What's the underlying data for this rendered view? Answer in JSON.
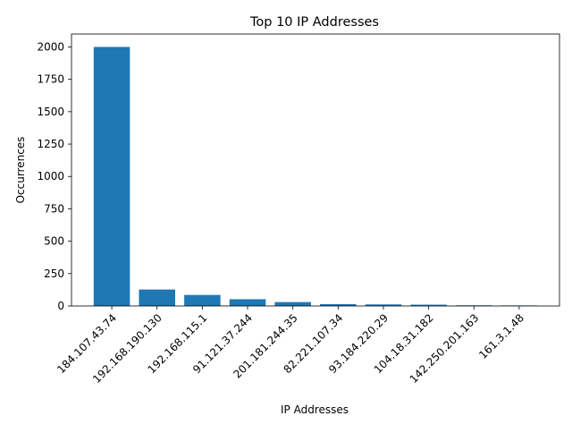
{
  "chart_data": {
    "type": "bar",
    "title": "Top 10 IP Addresses",
    "xlabel": "IP Addresses",
    "ylabel": "Occurrences",
    "categories": [
      "184.107.43.74",
      "192.168.190.130",
      "192.168.115.1",
      "91.121.37.244",
      "201.181.244.35",
      "82.221.107.34",
      "93.184.220.29",
      "104.18.31.182",
      "142.250.201.163",
      "161.3.1.48"
    ],
    "values": [
      2000,
      127,
      85,
      52,
      30,
      14,
      12,
      10,
      5,
      4
    ],
    "ylim": [
      0,
      2100
    ],
    "yticks": [
      0,
      250,
      500,
      750,
      1000,
      1250,
      1500,
      1750,
      2000
    ],
    "grid": false,
    "bar_color": "#1f77b4"
  }
}
